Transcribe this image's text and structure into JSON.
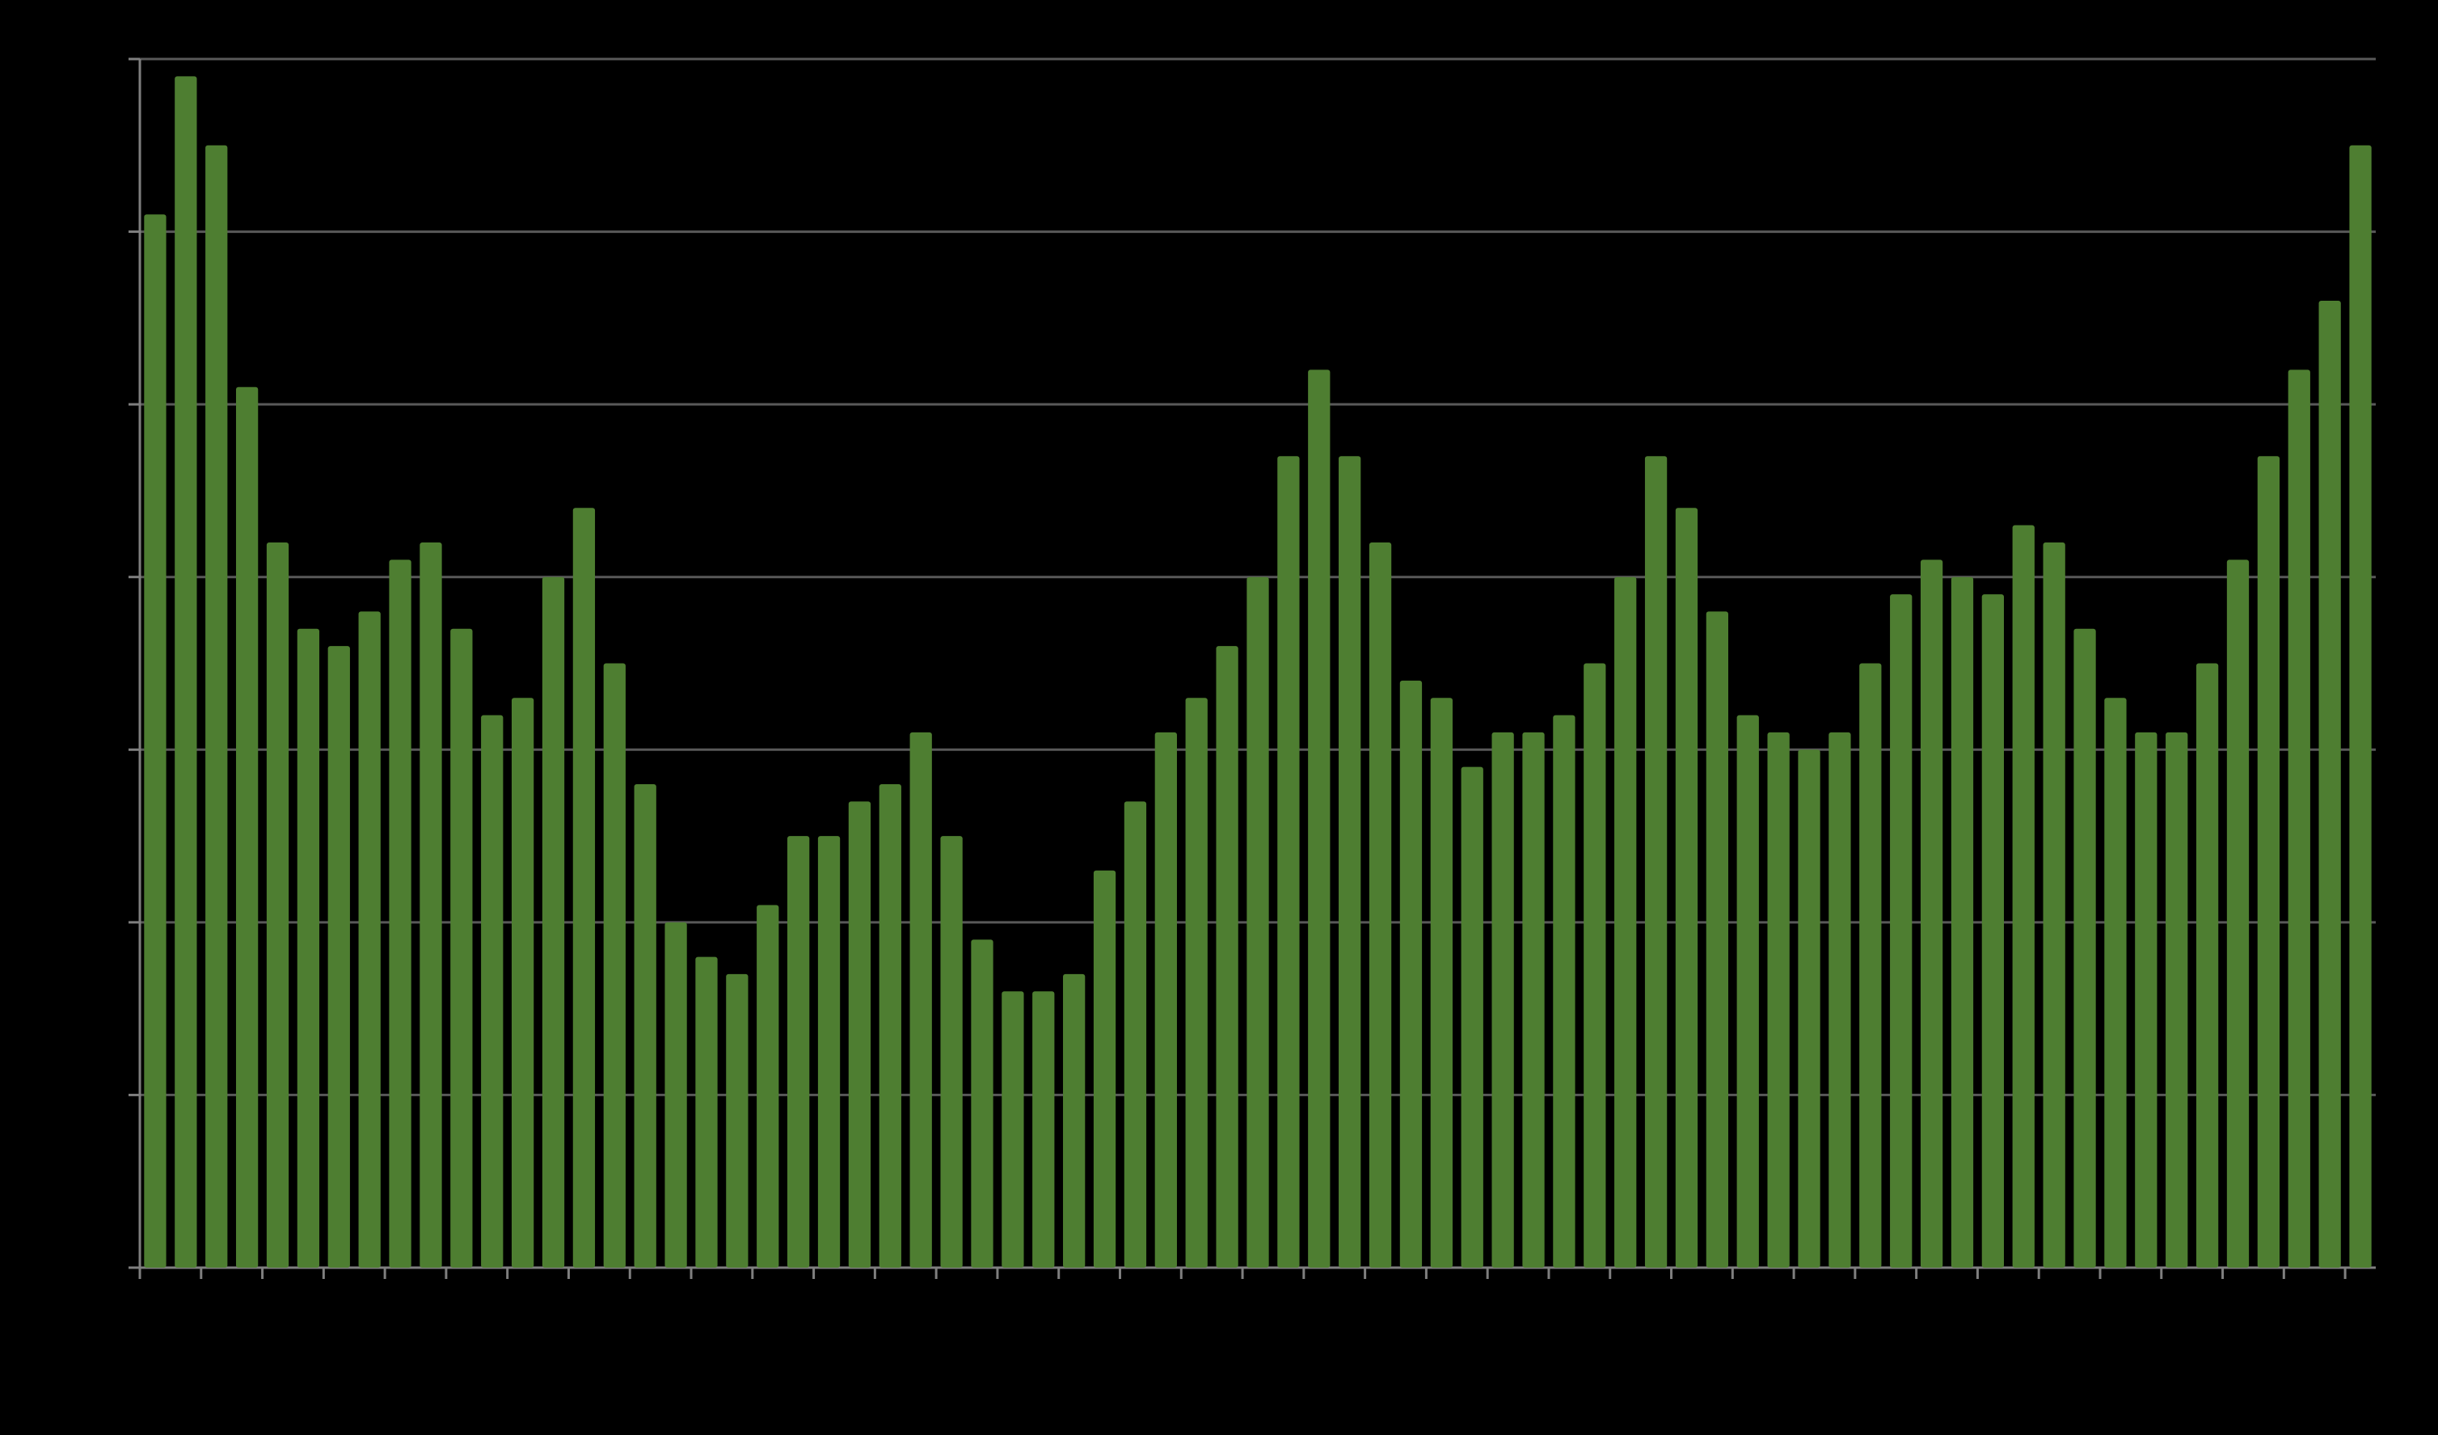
{
  "chart_data": {
    "type": "bar",
    "categories": [
      null,
      null,
      null,
      null,
      null,
      null,
      null,
      null,
      null,
      null,
      null,
      null,
      null,
      null,
      null,
      null,
      null,
      null,
      null,
      null,
      null,
      null,
      null,
      null,
      null,
      null,
      null,
      null,
      null,
      null,
      null,
      null,
      null,
      null,
      null,
      null,
      null,
      null,
      null,
      null,
      null,
      null,
      null,
      null,
      null,
      null,
      null,
      null,
      null,
      null,
      null,
      null,
      null,
      null,
      null,
      null,
      null,
      null,
      null,
      null,
      null,
      null,
      null,
      null,
      null,
      null,
      null,
      null,
      null,
      null,
      null,
      null,
      null
    ],
    "values": [
      6.1,
      6.9,
      6.5,
      5.1,
      4.2,
      3.7,
      3.6,
      3.8,
      4.1,
      4.2,
      3.7,
      3.2,
      3.3,
      4.0,
      4.4,
      3.5,
      2.8,
      2.0,
      1.8,
      1.7,
      2.1,
      2.5,
      2.5,
      2.7,
      2.8,
      3.1,
      2.5,
      1.9,
      1.6,
      1.6,
      1.7,
      2.3,
      2.7,
      3.1,
      3.3,
      3.6,
      4.0,
      4.7,
      5.2,
      4.7,
      4.2,
      3.4,
      3.3,
      2.9,
      3.1,
      3.1,
      3.2,
      3.5,
      4.0,
      4.7,
      4.4,
      3.8,
      3.2,
      3.1,
      3.0,
      3.1,
      3.5,
      3.9,
      4.1,
      4.0,
      3.9,
      4.3,
      4.2,
      3.7,
      3.3,
      3.1,
      3.1,
      3.5,
      4.1,
      4.7,
      5.2,
      5.6,
      6.5
    ],
    "color": "#4e7e31",
    "ylim": [
      0,
      7
    ],
    "yticks": [
      0,
      1,
      2,
      3,
      4,
      5,
      6,
      7
    ],
    "grid": true
  }
}
